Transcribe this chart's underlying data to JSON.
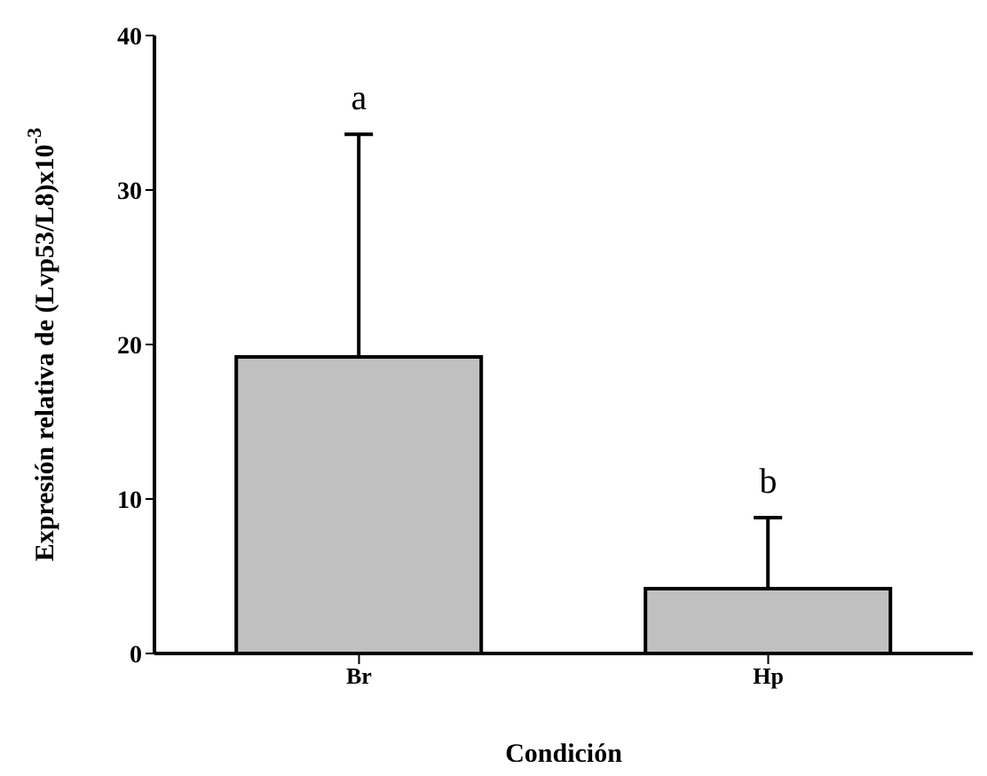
{
  "chart_data": {
    "type": "bar",
    "xlabel": "Condición",
    "ylabel": "Expresión relativa de (Lvp53/L8)x10$^{-3}$",
    "categories": [
      "Br",
      "Hp"
    ],
    "values": [
      19.2,
      4.2
    ],
    "errors": [
      [
        19.2,
        33.6
      ],
      [
        4.2,
        8.8
      ]
    ],
    "color": "#c0c0c0",
    "ylim": [
      0,
      40
    ],
    "yticks": [
      0,
      10,
      20,
      30,
      40
    ],
    "grid": false,
    "legend": false,
    "annotations": [
      "a",
      "b"
    ]
  }
}
